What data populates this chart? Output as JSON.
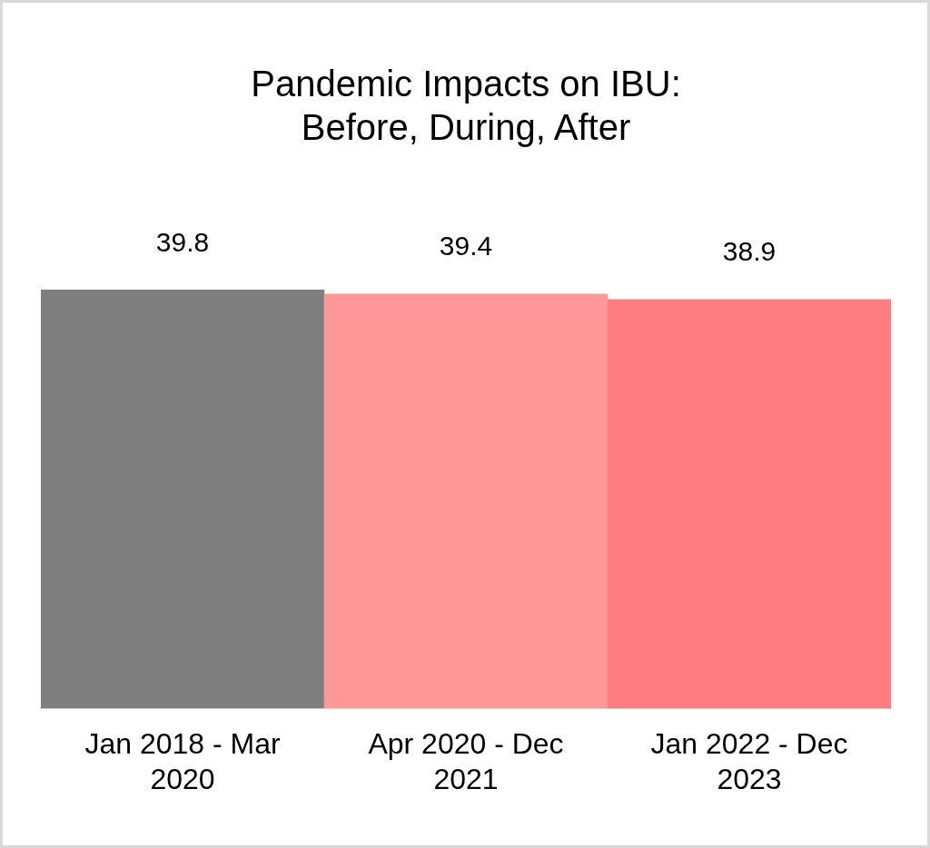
{
  "chart_data": {
    "type": "bar",
    "title": "Pandemic Impacts on IBU: Before, During, After",
    "categories": [
      "Jan 2018 - Mar 2020",
      "Apr 2020 - Dec 2021",
      "Jan 2022 - Dec 2023"
    ],
    "values": [
      39.8,
      39.4,
      38.9
    ],
    "colors": [
      "#7f7f7f",
      "#ff9999",
      "#ff7c80"
    ],
    "data_labels": true
  }
}
